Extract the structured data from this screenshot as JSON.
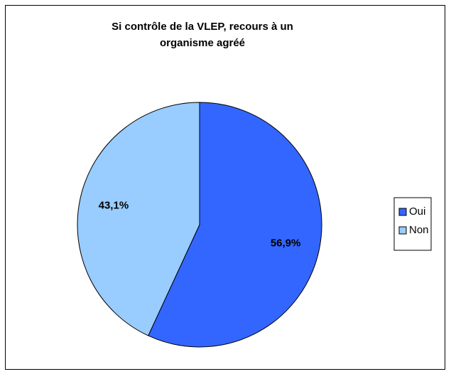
{
  "chart_data": {
    "type": "pie",
    "title": "Si contrôle de la VLEP, recours à un organisme agréé",
    "categories": [
      "Oui",
      "Non"
    ],
    "values": [
      56.9,
      43.1
    ],
    "value_labels": [
      "56,9%",
      "43,1%"
    ],
    "colors": [
      "#3366ff",
      "#99ccff"
    ],
    "legend": "right"
  }
}
